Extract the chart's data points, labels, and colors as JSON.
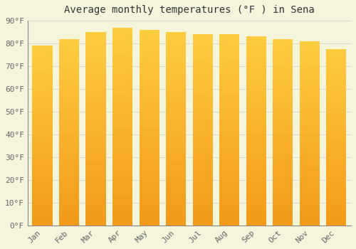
{
  "title": "Average monthly temperatures (°F ) in Sena",
  "months": [
    "Jan",
    "Feb",
    "Mar",
    "Apr",
    "May",
    "Jun",
    "Jul",
    "Aug",
    "Sep",
    "Oct",
    "Nov",
    "Dec"
  ],
  "values": [
    79,
    82,
    85,
    87,
    86,
    85,
    84,
    84,
    83,
    82,
    81,
    77.5
  ],
  "bar_color": "#FFA500",
  "bar_edge_color": "#E08000",
  "background_color": "#F5F5DC",
  "grid_color": "#CCCCCC",
  "ylim": [
    0,
    90
  ],
  "yticks": [
    0,
    10,
    20,
    30,
    40,
    50,
    60,
    70,
    80,
    90
  ],
  "title_fontsize": 10,
  "tick_fontsize": 8,
  "bar_width": 0.75
}
